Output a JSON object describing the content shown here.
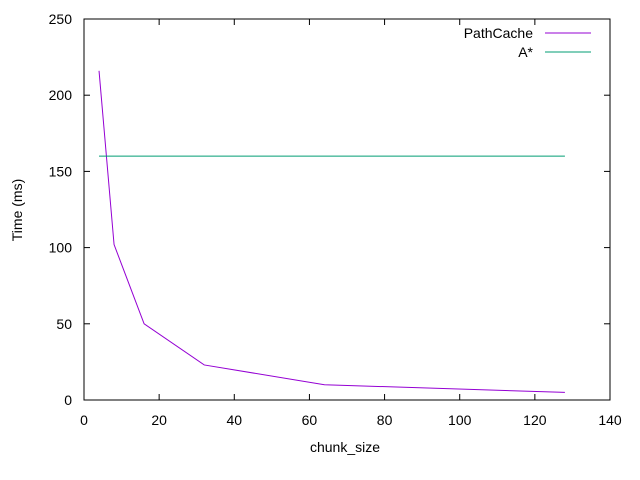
{
  "chart_data": {
    "type": "line",
    "title": "",
    "xlabel": "chunk_size",
    "ylabel": "Time (ms)",
    "xlim": [
      0,
      140
    ],
    "ylim": [
      0,
      250
    ],
    "xticks": [
      0,
      20,
      40,
      60,
      80,
      100,
      120,
      140
    ],
    "yticks": [
      0,
      50,
      100,
      150,
      200,
      250
    ],
    "xtick_labels": [
      "0",
      "20",
      "40",
      "60",
      "80",
      "100",
      "120",
      "140"
    ],
    "ytick_labels": [
      "0",
      "50",
      "100",
      "150",
      "200",
      "250"
    ],
    "grid": false,
    "legend_position": "top-right",
    "series": [
      {
        "name": "PathCache",
        "color": "#9400d3",
        "x": [
          4,
          8,
          16,
          32,
          64,
          128
        ],
        "y": [
          216,
          102,
          50,
          23,
          10,
          5
        ]
      },
      {
        "name": "A*",
        "color": "#009e73",
        "x": [
          4,
          128
        ],
        "y": [
          160,
          160
        ]
      }
    ]
  }
}
